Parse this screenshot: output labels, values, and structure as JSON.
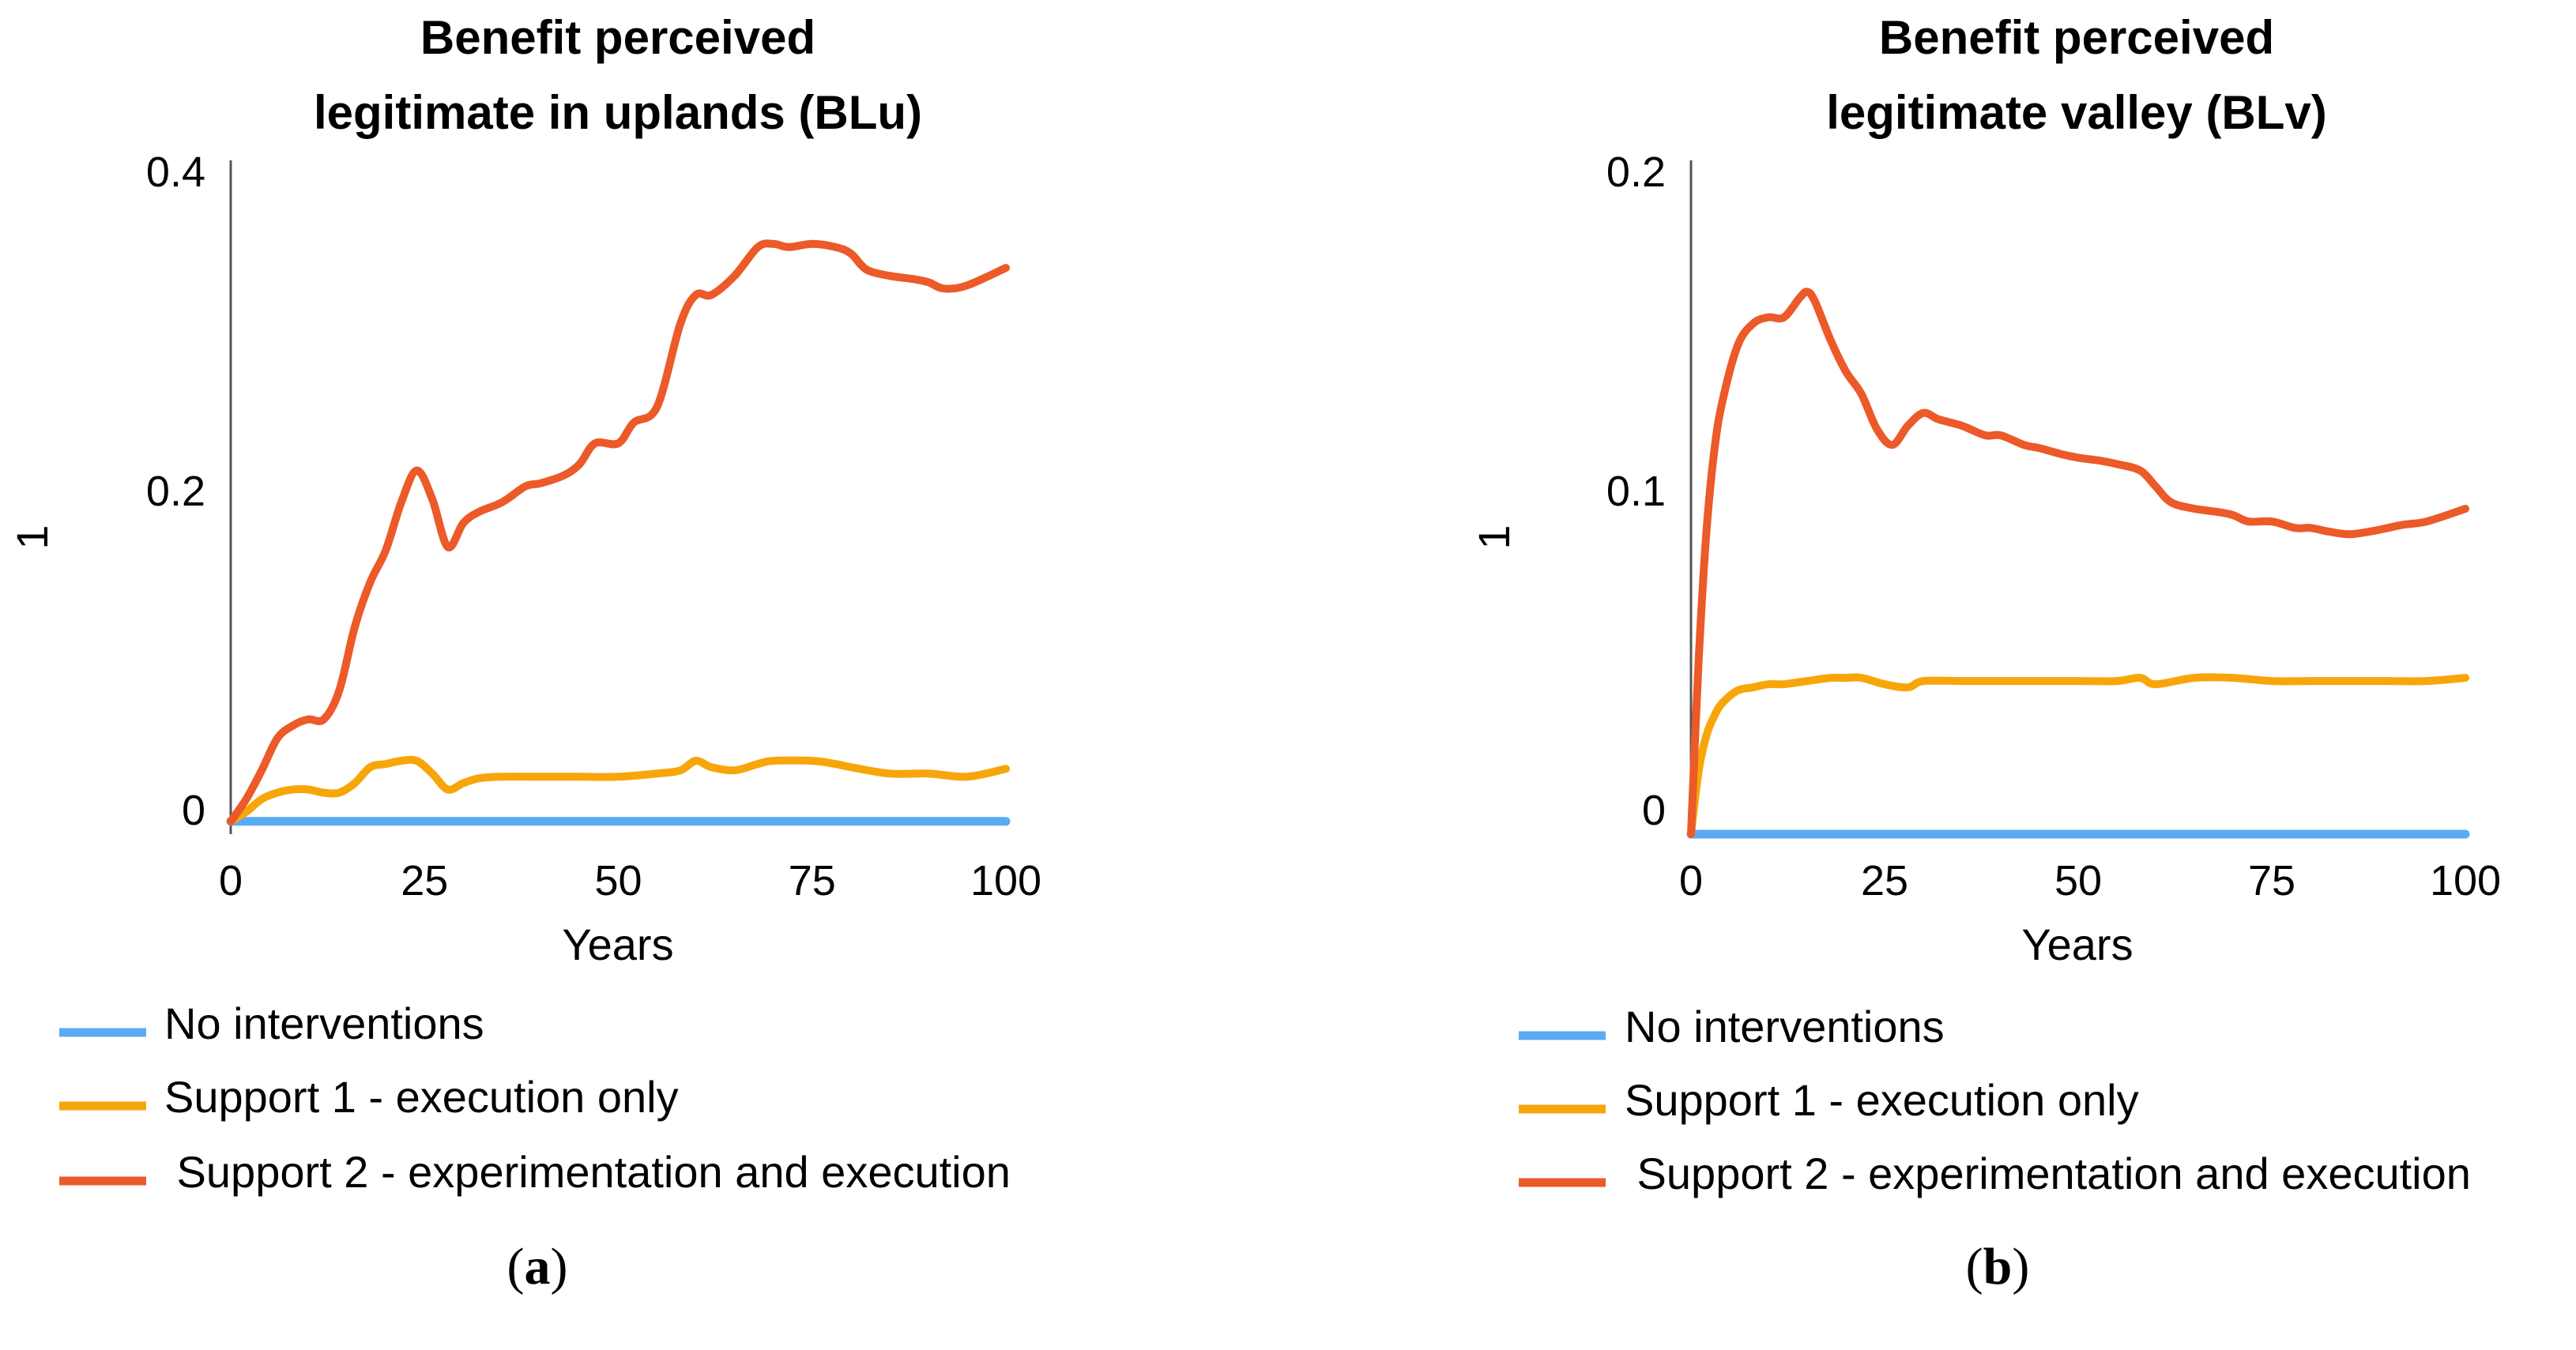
{
  "colors": {
    "no_interventions": "#5aaaf5",
    "support1": "#f7a60a",
    "support2": "#eb5a28",
    "axis": "#555555"
  },
  "chart_data": [
    {
      "id": "a",
      "type": "line",
      "panel_label": "a",
      "title_lines": [
        "Benefit perceived",
        "legitimate in uplands (BLu)"
      ],
      "xlabel": "Years",
      "ylabel": "1",
      "xlim": [
        0,
        100
      ],
      "ylim": [
        -0.01,
        0.4
      ],
      "xticks": [
        0,
        25,
        50,
        75,
        100
      ],
      "xtick_labels": [
        "0",
        "25",
        "50",
        "75",
        "100"
      ],
      "yticks": [
        0,
        0.2,
        0.4
      ],
      "ytick_labels": [
        "0",
        "0.2",
        "0.4"
      ],
      "legend": [
        "No interventions",
        "Support 1 - execution only",
        " Support 2 - experimentation and execution"
      ],
      "series": [
        {
          "name": "No interventions",
          "color_key": "no_interventions",
          "x": [
            0,
            100
          ],
          "y": [
            -0.002,
            -0.002
          ]
        },
        {
          "name": "Support 1 - execution only",
          "color_key": "support1",
          "x": [
            0,
            2,
            4,
            6,
            8,
            10,
            12,
            14,
            16,
            18,
            20,
            22,
            24,
            26,
            28,
            30,
            32,
            35,
            40,
            45,
            50,
            55,
            58,
            60,
            62,
            65,
            68,
            70,
            75,
            78,
            80,
            85,
            90,
            95,
            100
          ],
          "y": [
            -0.002,
            0.004,
            0.012,
            0.016,
            0.018,
            0.018,
            0.016,
            0.016,
            0.022,
            0.032,
            0.034,
            0.036,
            0.036,
            0.028,
            0.018,
            0.022,
            0.025,
            0.026,
            0.026,
            0.026,
            0.026,
            0.028,
            0.03,
            0.036,
            0.032,
            0.03,
            0.034,
            0.036,
            0.036,
            0.034,
            0.032,
            0.028,
            0.028,
            0.026,
            0.031
          ]
        },
        {
          "name": "Support 2 - experimentation and execution",
          "color_key": "support2",
          "x": [
            0,
            2,
            4,
            6,
            8,
            10,
            12,
            14,
            16,
            18,
            20,
            22,
            24,
            26,
            28,
            30,
            32,
            35,
            38,
            40,
            43,
            45,
            47,
            50,
            52,
            55,
            58,
            60,
            62,
            65,
            68,
            70,
            72,
            75,
            78,
            80,
            82,
            85,
            88,
            90,
            92,
            95,
            100
          ],
          "y": [
            -0.002,
            0.012,
            0.03,
            0.05,
            0.058,
            0.062,
            0.062,
            0.08,
            0.12,
            0.148,
            0.168,
            0.198,
            0.218,
            0.2,
            0.17,
            0.185,
            0.192,
            0.198,
            0.208,
            0.21,
            0.215,
            0.222,
            0.235,
            0.235,
            0.248,
            0.258,
            0.31,
            0.328,
            0.328,
            0.34,
            0.358,
            0.36,
            0.358,
            0.36,
            0.358,
            0.354,
            0.344,
            0.34,
            0.338,
            0.336,
            0.332,
            0.334,
            0.345
          ]
        }
      ]
    },
    {
      "id": "b",
      "type": "line",
      "panel_label": "b",
      "title_lines": [
        "Benefit perceived",
        "legitimate valley (BLv)"
      ],
      "xlabel": "Years",
      "ylabel": "1",
      "xlim": [
        0,
        100
      ],
      "ylim": [
        -0.005,
        0.2
      ],
      "xticks": [
        0,
        25,
        50,
        75,
        100
      ],
      "xtick_labels": [
        "0",
        "25",
        "50",
        "75",
        "100"
      ],
      "yticks": [
        0,
        0.1,
        0.2
      ],
      "ytick_labels": [
        "0",
        "0.1",
        "0.2"
      ],
      "legend": [
        "No interventions",
        "Support 1 - execution only",
        " Support 2 - experimentation and execution"
      ],
      "series": [
        {
          "name": "No interventions",
          "color_key": "no_interventions",
          "x": [
            0,
            100
          ],
          "y": [
            -0.005,
            -0.005
          ]
        },
        {
          "name": "Support 1 - execution only",
          "color_key": "support1",
          "x": [
            0,
            1,
            2,
            3,
            4,
            6,
            8,
            10,
            12,
            15,
            18,
            20,
            22,
            25,
            28,
            30,
            35,
            40,
            45,
            50,
            55,
            58,
            60,
            65,
            70,
            75,
            80,
            85,
            90,
            95,
            100
          ],
          "y": [
            -0.005,
            0.015,
            0.026,
            0.032,
            0.036,
            0.04,
            0.041,
            0.042,
            0.042,
            0.043,
            0.044,
            0.044,
            0.044,
            0.042,
            0.041,
            0.043,
            0.043,
            0.043,
            0.043,
            0.043,
            0.043,
            0.044,
            0.042,
            0.044,
            0.044,
            0.043,
            0.043,
            0.043,
            0.043,
            0.043,
            0.044
          ]
        },
        {
          "name": "Support 2 - experimentation and execution",
          "color_key": "support2",
          "x": [
            0,
            1,
            2,
            3,
            4,
            6,
            8,
            10,
            12,
            14,
            15,
            16,
            18,
            20,
            22,
            24,
            26,
            28,
            30,
            32,
            35,
            38,
            40,
            43,
            45,
            48,
            50,
            53,
            55,
            58,
            60,
            62,
            65,
            68,
            70,
            72,
            75,
            78,
            80,
            82,
            85,
            88,
            90,
            92,
            95,
            100
          ],
          "y": [
            -0.005,
            0.05,
            0.09,
            0.115,
            0.13,
            0.148,
            0.155,
            0.157,
            0.157,
            0.163,
            0.165,
            0.162,
            0.15,
            0.14,
            0.133,
            0.122,
            0.117,
            0.123,
            0.127,
            0.125,
            0.123,
            0.12,
            0.12,
            0.117,
            0.116,
            0.114,
            0.113,
            0.112,
            0.111,
            0.109,
            0.104,
            0.099,
            0.097,
            0.096,
            0.095,
            0.093,
            0.093,
            0.091,
            0.091,
            0.09,
            0.089,
            0.09,
            0.091,
            0.092,
            0.093,
            0.097
          ]
        }
      ]
    }
  ]
}
